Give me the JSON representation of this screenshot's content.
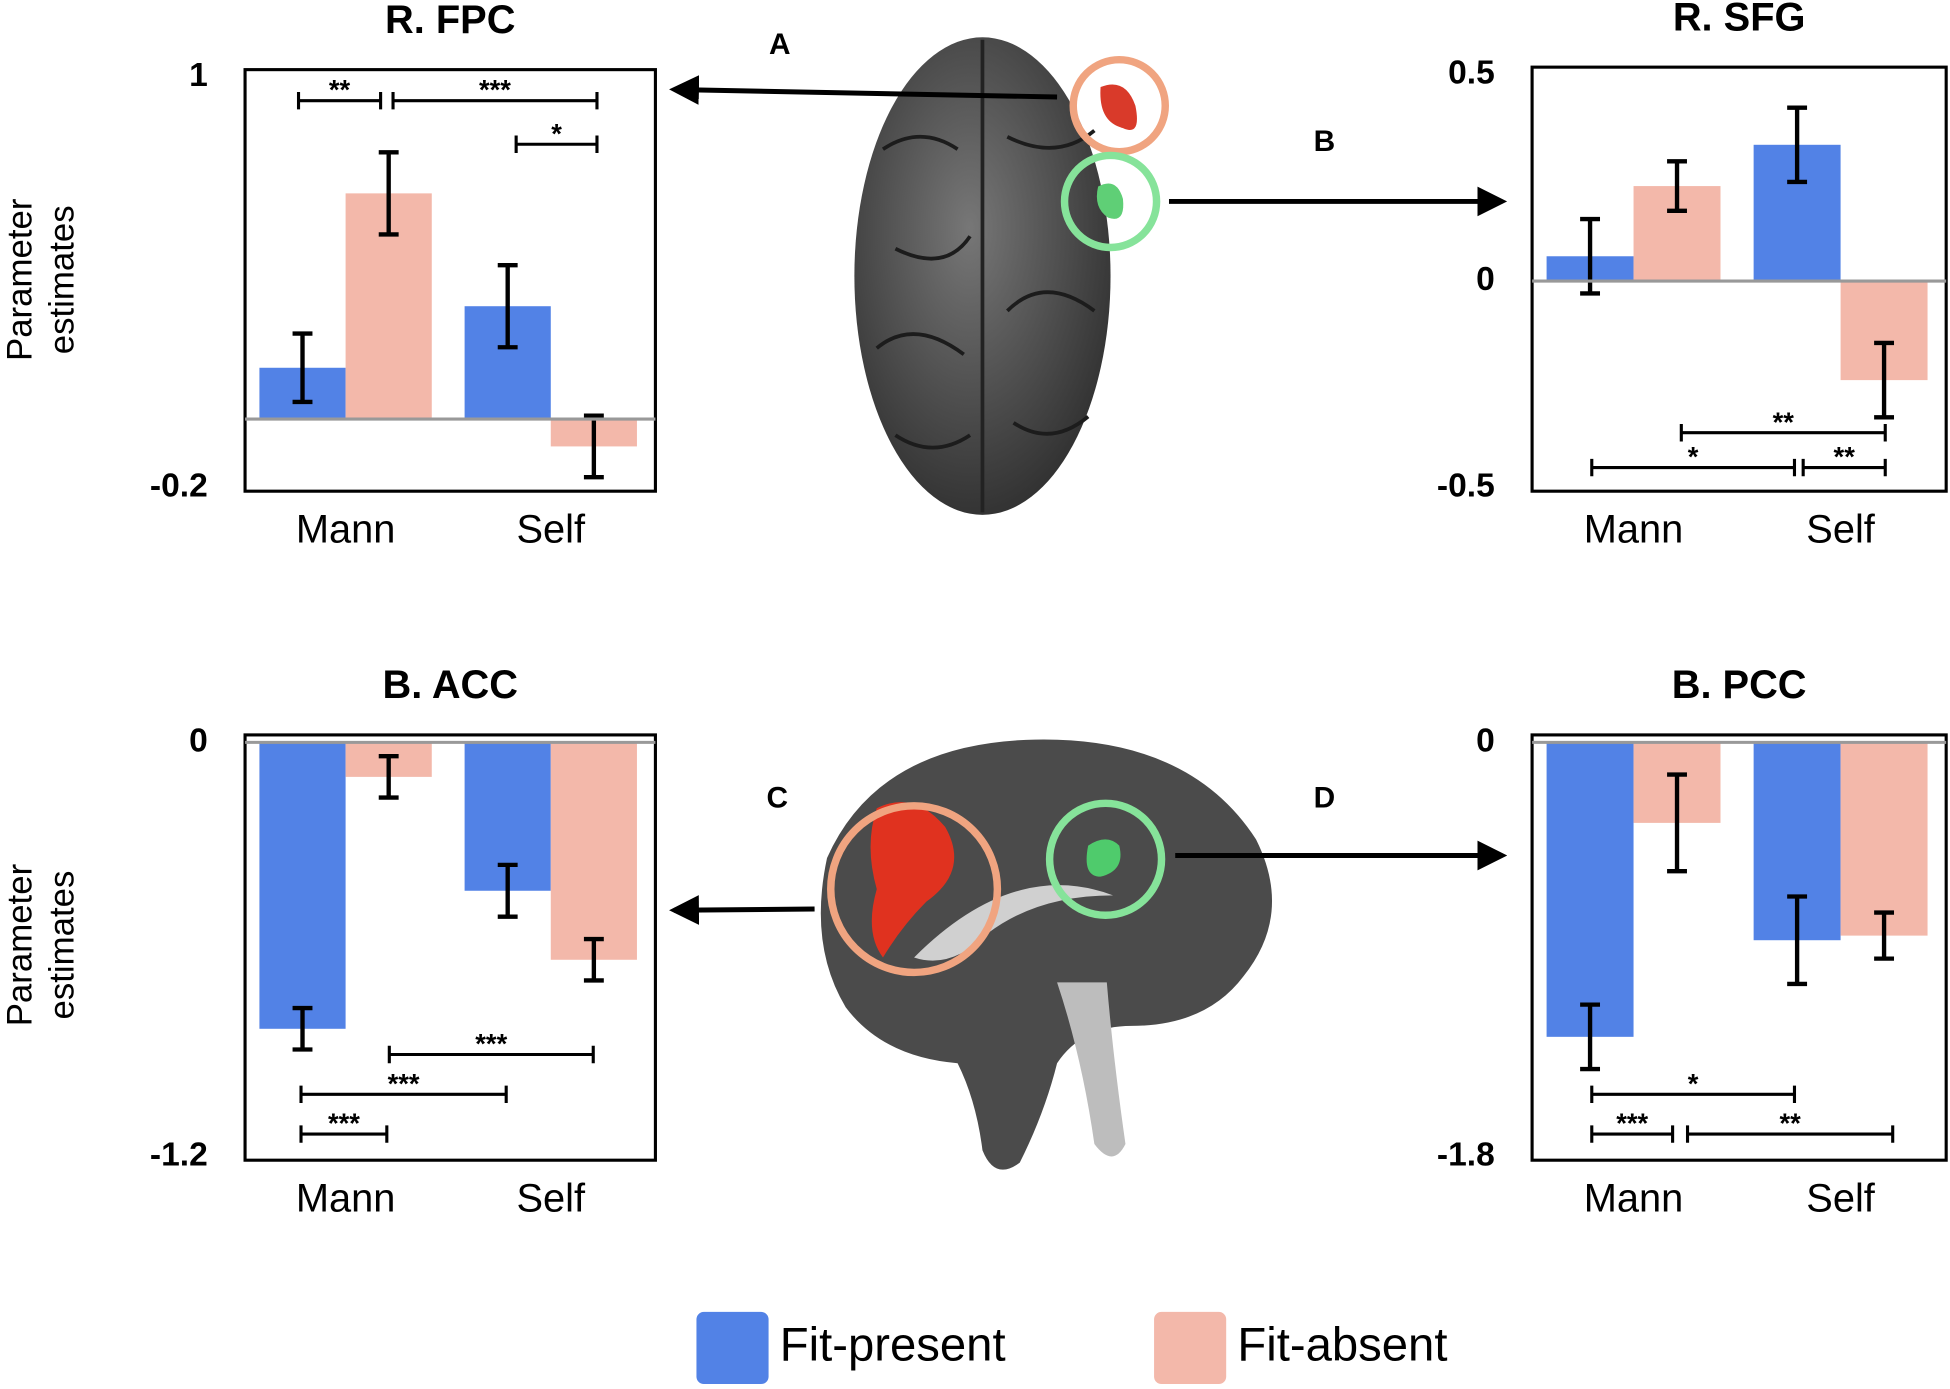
{
  "chart_data": [
    {
      "type": "bar",
      "title": "R. FPC",
      "annotation": "A",
      "ylabel": "Parameter estimates",
      "categories": [
        "Mann",
        "Self"
      ],
      "series": [
        {
          "name": "Fit-present",
          "color": "#5282e6",
          "values": [
            0.15,
            0.33
          ],
          "errors": [
            0.1,
            0.12
          ]
        },
        {
          "name": "Fit-absent",
          "color": "#f3b8aa",
          "values": [
            0.66,
            -0.08
          ],
          "errors": [
            0.12,
            0.09
          ]
        }
      ],
      "ylim": [
        -0.2,
        1
      ],
      "yticks": [
        -0.2,
        1
      ],
      "significance": [
        "**",
        "***",
        "*"
      ]
    },
    {
      "type": "bar",
      "title": "R. SFG",
      "annotation": "B",
      "categories": [
        "Mann",
        "Self"
      ],
      "series": [
        {
          "name": "Fit-present",
          "color": "#5282e6",
          "values": [
            0.06,
            0.33
          ],
          "errors": [
            0.09,
            0.09
          ]
        },
        {
          "name": "Fit-absent",
          "color": "#f3b8aa",
          "values": [
            0.23,
            -0.24
          ],
          "errors": [
            0.06,
            0.09
          ]
        }
      ],
      "ylim": [
        -0.5,
        0.5
      ],
      "yticks": [
        -0.5,
        0,
        0.5
      ],
      "significance": [
        "**",
        "*",
        "**"
      ]
    },
    {
      "type": "bar",
      "title": "B. ACC",
      "annotation": "C",
      "ylabel": "Parameter estimates",
      "categories": [
        "Mann",
        "Self"
      ],
      "series": [
        {
          "name": "Fit-present",
          "color": "#5282e6",
          "values": [
            -0.83,
            -0.43
          ],
          "errors": [
            0.06,
            0.075
          ]
        },
        {
          "name": "Fit-absent",
          "color": "#f3b8aa",
          "values": [
            -0.1,
            -0.63
          ],
          "errors": [
            0.06,
            0.06
          ]
        }
      ],
      "ylim": [
        -1.2,
        0
      ],
      "yticks": [
        -1.2,
        0
      ],
      "significance": [
        "***",
        "***",
        "***"
      ]
    },
    {
      "type": "bar",
      "title": "B. PCC",
      "annotation": "D",
      "categories": [
        "Mann",
        "Self"
      ],
      "series": [
        {
          "name": "Fit-present",
          "color": "#5282e6",
          "values": [
            -1.28,
            -0.86
          ],
          "errors": [
            0.14,
            0.19
          ]
        },
        {
          "name": "Fit-absent",
          "color": "#f3b8aa",
          "values": [
            -0.35,
            -0.84
          ],
          "errors": [
            0.21,
            0.1
          ]
        }
      ],
      "ylim": [
        -1.8,
        0
      ],
      "yticks": [
        -1.8,
        0
      ],
      "significance": [
        "*",
        "***",
        "**"
      ]
    }
  ]
}
